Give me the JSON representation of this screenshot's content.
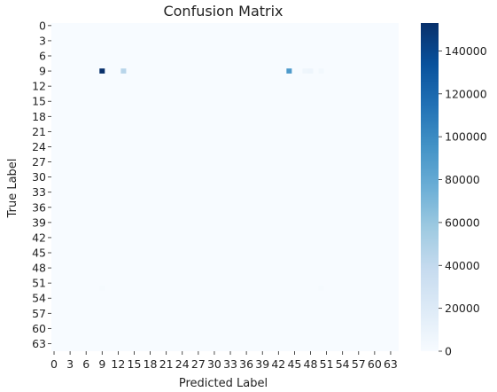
{
  "chart_data": {
    "type": "heatmap",
    "title": "Confusion Matrix",
    "xlabel": "Predicted Label",
    "ylabel": "True Label",
    "n_classes": 65,
    "x_tick_labels": [
      "0",
      "3",
      "6",
      "9",
      "12",
      "15",
      "18",
      "21",
      "24",
      "27",
      "30",
      "33",
      "36",
      "39",
      "42",
      "45",
      "48",
      "51",
      "54",
      "57",
      "60",
      "63"
    ],
    "y_tick_labels": [
      "0",
      "3",
      "6",
      "9",
      "12",
      "15",
      "18",
      "21",
      "24",
      "27",
      "30",
      "33",
      "36",
      "39",
      "42",
      "45",
      "48",
      "51",
      "54",
      "57",
      "60",
      "63"
    ],
    "colorbar": {
      "colormap": "Blues",
      "min": 0,
      "max": 153000,
      "tick_values": [
        0,
        20000,
        40000,
        60000,
        80000,
        100000,
        120000,
        140000
      ],
      "tick_labels": [
        "0",
        "20000",
        "40000",
        "60000",
        "80000",
        "100000",
        "120000",
        "140000"
      ]
    },
    "background_value": 0,
    "cells": [
      {
        "row": 9,
        "col": 9,
        "value": 153000
      },
      {
        "row": 9,
        "col": 13,
        "value": 45000
      },
      {
        "row": 9,
        "col": 44,
        "value": 90000
      },
      {
        "row": 9,
        "col": 47,
        "value": 6000
      },
      {
        "row": 9,
        "col": 48,
        "value": 7000
      },
      {
        "row": 9,
        "col": 50,
        "value": 4000
      },
      {
        "row": 52,
        "col": 9,
        "value": 1500
      },
      {
        "row": 52,
        "col": 50,
        "value": 1500
      }
    ],
    "grid": false
  }
}
